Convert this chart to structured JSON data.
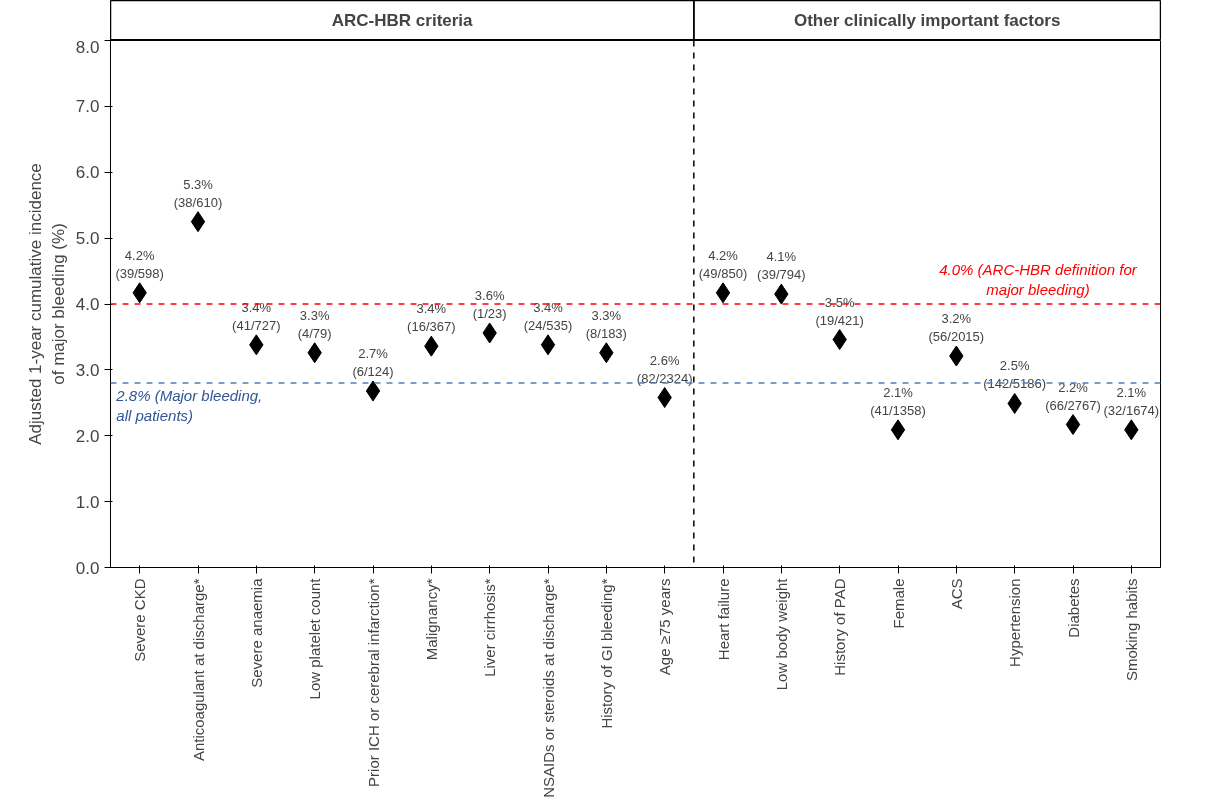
{
  "chart_data": {
    "type": "scatter",
    "ylabel": "Adjusted 1-year cumulative incidence\nof major bleeding (%)",
    "categories": [
      "Severe CKD",
      "Anticoagulant at discharge*",
      "Severe anaemia",
      "Low platelet count",
      "Prior ICH or cerebral infarction*",
      "Malignancy*",
      "Liver cirrhosis*",
      "NSAIDs or steroids at discharge*",
      "History of GI bleeding*",
      "Age ≥75 years",
      "Heart failure",
      "Low body weight",
      "History of PAD",
      "Female",
      "ACS",
      "Hypertension",
      "Diabetes",
      "Smoking habits"
    ],
    "values": [
      4.17,
      5.25,
      3.38,
      3.26,
      2.68,
      3.36,
      3.56,
      3.38,
      3.26,
      2.58,
      4.17,
      4.15,
      3.46,
      2.09,
      3.21,
      2.49,
      2.17,
      2.09
    ],
    "value_labels": [
      "4.2%\n(39/598)",
      "5.3%\n(38/610)",
      "3.4%\n(41/727)",
      "3.3%\n(4/79)",
      "2.7%\n(6/124)",
      "3.4%\n(16/367)",
      "3.6%\n(1/23)",
      "3.4%\n(24/535)",
      "3.3%\n(8/183)",
      "2.6%\n(82/2324)",
      "4.2%\n(49/850)",
      "4.1%\n(39/794)",
      "3.5%\n(19/421)",
      "2.1%\n(41/1358)",
      "3.2%\n(56/2015)",
      "2.5%\n(142/5186)",
      "2.2%\n(66/2767)",
      "2.1%\n(32/1674)"
    ],
    "color": "#000000",
    "marker": "diamond",
    "ylim": [
      0,
      8
    ],
    "yticks": [
      {
        "value": 0,
        "label": "0.0"
      },
      {
        "value": 1,
        "label": "1.0"
      },
      {
        "value": 2,
        "label": "2.0"
      },
      {
        "value": 3,
        "label": "3.0"
      },
      {
        "value": 4,
        "label": "4.0"
      },
      {
        "value": 5,
        "label": "5.0"
      },
      {
        "value": 6,
        "label": "6.0"
      },
      {
        "value": 7,
        "label": "7.0"
      },
      {
        "value": 8,
        "label": "8.0"
      }
    ],
    "grid": false,
    "ref_lines": [
      {
        "axis": "y",
        "value": 4.0,
        "label": "4.0% (ARC-HBR definition for major bleeding)",
        "color": "#ff0000",
        "line_style": "dashed"
      },
      {
        "axis": "y",
        "value": 2.8,
        "label": "2.8% (Major bleeding, all patients)",
        "color": "#4f81bd",
        "line_style": "dashed"
      },
      {
        "axis": "x",
        "value": "Heart failure",
        "label": null,
        "color": "#000000",
        "line_style": "dashed"
      }
    ],
    "annotations": [
      "ARC-HBR criteria",
      "Other clinically important factors"
    ]
  }
}
